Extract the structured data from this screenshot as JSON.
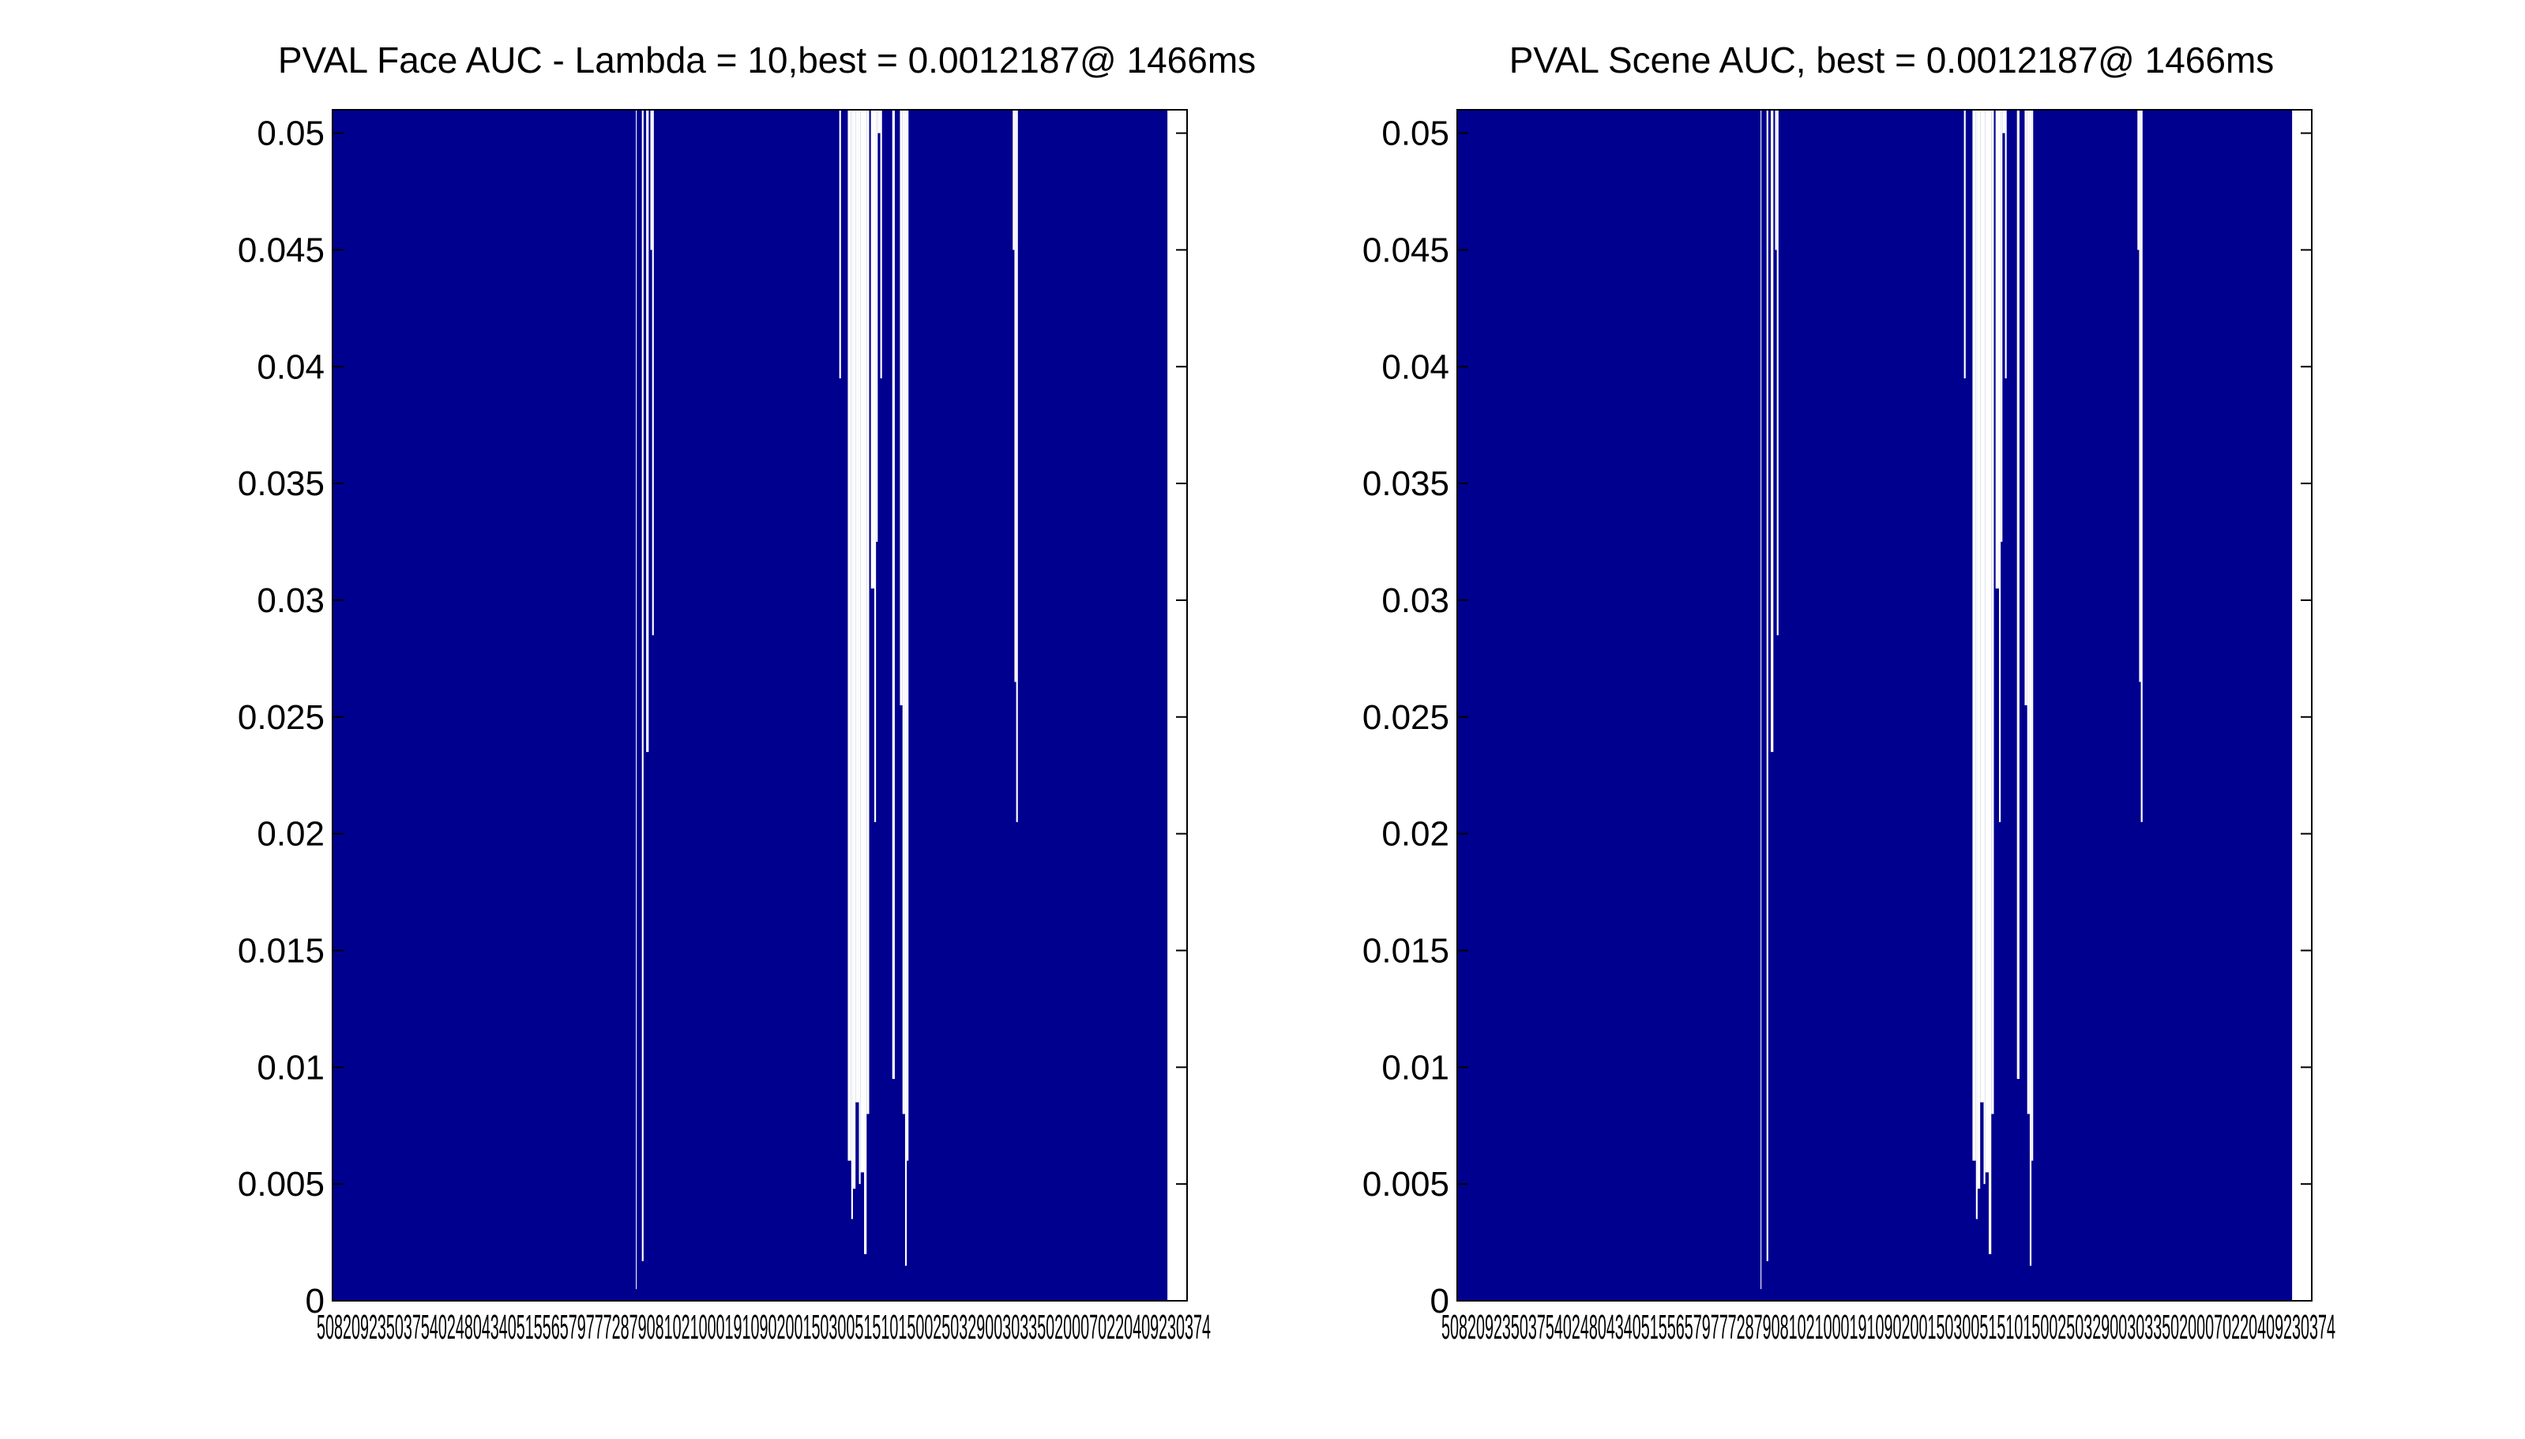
{
  "figure": {
    "background": "#ffffff"
  },
  "chart_data": [
    {
      "type": "area",
      "title": "PVAL Face AUC - Lambda = 10,best = 0.0012187@ 1466ms",
      "xlabel": "",
      "ylabel": "",
      "ylim": [
        0,
        0.051
      ],
      "yticks": [
        "0",
        "0.005",
        "0.01",
        "0.015",
        "0.02",
        "0.025",
        "0.03",
        "0.035",
        "0.04",
        "0.045",
        "0.05"
      ],
      "x_tick_labels_overlapping": "5082092350375402480434051556579777287908102100019109020015030051510150025032900303350200070220409230374",
      "fill_color": "#00008f",
      "grid": false,
      "legend": "none",
      "x_start": 0,
      "x_end": 1,
      "filled_until": 0.977,
      "gaps": [
        [
          0.355,
          0.356,
          0.0005
        ],
        [
          0.356,
          0.362,
          0.06
        ],
        [
          0.362,
          0.364,
          0.0017
        ],
        [
          0.364,
          0.367,
          0.06
        ],
        [
          0.367,
          0.37,
          0.0235
        ],
        [
          0.37,
          0.372,
          0.06
        ],
        [
          0.372,
          0.374,
          0.045
        ],
        [
          0.374,
          0.376,
          0.0285
        ],
        [
          0.376,
          0.378,
          0.06
        ],
        [
          0.593,
          0.595,
          0.0395
        ],
        [
          0.603,
          0.607,
          0.006
        ],
        [
          0.607,
          0.609,
          0.0035
        ],
        [
          0.609,
          0.612,
          0.0048
        ],
        [
          0.612,
          0.616,
          0.0085
        ],
        [
          0.616,
          0.618,
          0.005
        ],
        [
          0.618,
          0.622,
          0.0055
        ],
        [
          0.622,
          0.625,
          0.002
        ],
        [
          0.625,
          0.628,
          0.008
        ],
        [
          0.63,
          0.634,
          0.0305
        ],
        [
          0.634,
          0.636,
          0.0205
        ],
        [
          0.636,
          0.638,
          0.0325
        ],
        [
          0.638,
          0.641,
          0.05
        ],
        [
          0.641,
          0.643,
          0.0395
        ],
        [
          0.655,
          0.658,
          0.0095
        ],
        [
          0.664,
          0.667,
          0.0255
        ],
        [
          0.667,
          0.67,
          0.008
        ],
        [
          0.67,
          0.672,
          0.0015
        ],
        [
          0.672,
          0.674,
          0.006
        ],
        [
          0.796,
          0.798,
          0.045
        ],
        [
          0.798,
          0.8,
          0.0265
        ],
        [
          0.8,
          0.802,
          0.0205
        ]
      ]
    },
    {
      "type": "area",
      "title": "PVAL Scene AUC, best = 0.0012187@ 1466ms",
      "xlabel": "",
      "ylabel": "",
      "ylim": [
        0,
        0.051
      ],
      "yticks": [
        "0",
        "0.005",
        "0.01",
        "0.015",
        "0.02",
        "0.025",
        "0.03",
        "0.035",
        "0.04",
        "0.045",
        "0.05"
      ],
      "x_tick_labels_overlapping": "5082092350375402480434051556579777287908102100019109020015030051510150025032900303350200070220409230374",
      "fill_color": "#00008f",
      "grid": false,
      "legend": "none",
      "x_start": 0,
      "x_end": 1,
      "filled_until": 0.977,
      "gaps": [
        [
          0.355,
          0.356,
          0.0005
        ],
        [
          0.356,
          0.362,
          0.06
        ],
        [
          0.362,
          0.364,
          0.0017
        ],
        [
          0.364,
          0.367,
          0.06
        ],
        [
          0.367,
          0.37,
          0.0235
        ],
        [
          0.37,
          0.372,
          0.06
        ],
        [
          0.372,
          0.374,
          0.045
        ],
        [
          0.374,
          0.376,
          0.0285
        ],
        [
          0.376,
          0.378,
          0.06
        ],
        [
          0.593,
          0.595,
          0.0395
        ],
        [
          0.603,
          0.607,
          0.006
        ],
        [
          0.607,
          0.609,
          0.0035
        ],
        [
          0.609,
          0.612,
          0.0048
        ],
        [
          0.612,
          0.616,
          0.0085
        ],
        [
          0.616,
          0.618,
          0.005
        ],
        [
          0.618,
          0.622,
          0.0055
        ],
        [
          0.622,
          0.625,
          0.002
        ],
        [
          0.625,
          0.628,
          0.008
        ],
        [
          0.63,
          0.634,
          0.0305
        ],
        [
          0.634,
          0.636,
          0.0205
        ],
        [
          0.636,
          0.638,
          0.0325
        ],
        [
          0.638,
          0.641,
          0.05
        ],
        [
          0.641,
          0.643,
          0.0395
        ],
        [
          0.655,
          0.658,
          0.0095
        ],
        [
          0.664,
          0.667,
          0.0255
        ],
        [
          0.667,
          0.67,
          0.008
        ],
        [
          0.67,
          0.672,
          0.0015
        ],
        [
          0.672,
          0.674,
          0.006
        ],
        [
          0.796,
          0.798,
          0.045
        ],
        [
          0.798,
          0.8,
          0.0265
        ],
        [
          0.8,
          0.802,
          0.0205
        ]
      ]
    }
  ]
}
